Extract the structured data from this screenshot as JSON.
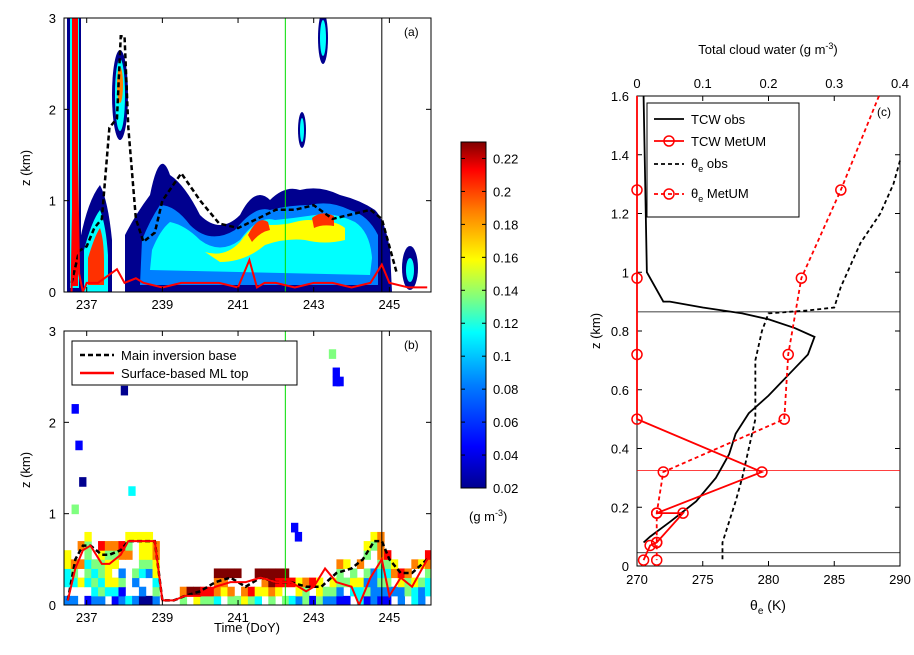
{
  "panel_a": {
    "label": "(a)",
    "ylabel": "z (km)",
    "yticks": [
      "0",
      "1",
      "2",
      "3"
    ],
    "xticks": [
      "237",
      "239",
      "241",
      "243",
      "245"
    ]
  },
  "panel_b": {
    "label": "(b)",
    "ylabel": "z (km)",
    "xlabel": "Time (DoY)",
    "yticks": [
      "0",
      "1",
      "2",
      "3"
    ],
    "xticks": [
      "237",
      "239",
      "241",
      "243",
      "245"
    ],
    "legend": [
      "Main inversion base",
      "Surface-based ML top"
    ]
  },
  "colorbar": {
    "ticks": [
      "0.02",
      "0.04",
      "0.06",
      "0.08",
      "0.1",
      "0.12",
      "0.14",
      "0.16",
      "0.18",
      "0.2",
      "0.22"
    ],
    "unit_base": "(g m",
    "unit_exp": "-3",
    "unit_close": ")"
  },
  "panel_c": {
    "label": "(c)",
    "top_label_base": "Total cloud water (g m",
    "top_label_exp": "-3",
    "top_label_close": ")",
    "top_ticks": [
      "0",
      "0.1",
      "0.2",
      "0.3",
      "0.4"
    ],
    "bottom_ticks": [
      "270",
      "275",
      "280",
      "285",
      "290"
    ],
    "yticks": [
      "0",
      "0.2",
      "0.4",
      "0.6",
      "0.8",
      "1",
      "1.2",
      "1.4",
      "1.6"
    ],
    "ylabel": "z (km)",
    "xlabel_base": "θ",
    "xlabel_sub": "e",
    "xlabel_rest": " (K)",
    "legend": [
      {
        "base": "TCW obs",
        "sub": "",
        "rest": ""
      },
      {
        "base": "TCW MetUM",
        "sub": "",
        "rest": ""
      },
      {
        "base": "θ",
        "sub": "e",
        "rest": " obs"
      },
      {
        "base": "θ",
        "sub": "e",
        "rest": " MetUM"
      }
    ]
  },
  "colors": {
    "obs": "#000000",
    "model": "#ff0000",
    "green_line": "#00dd00",
    "cloud_colormap": [
      "#00008f",
      "#0000ff",
      "#007fff",
      "#00ffff",
      "#7fff7f",
      "#ffff00",
      "#ff7f00",
      "#ff0000",
      "#7f0000"
    ]
  },
  "chart_data": [
    {
      "type": "heatmap",
      "panel": "a",
      "xlabel": "",
      "ylabel": "z (km)",
      "xlim": [
        236.4,
        246.1
      ],
      "ylim": [
        0,
        3
      ],
      "vertical_lines": [
        {
          "x": 242.25,
          "color": "green"
        },
        {
          "x": 244.8,
          "color": "black"
        }
      ],
      "series": [
        {
          "name": "Main inversion base",
          "x": [
            236.6,
            236.8,
            237.0,
            237.2,
            237.4,
            237.6,
            237.8,
            237.9,
            238.0,
            238.1,
            238.3,
            238.5,
            238.8,
            239.0,
            239.5,
            240.0,
            240.5,
            241.0,
            241.5,
            242.0,
            242.5,
            243.0,
            243.5,
            244.0,
            244.5,
            244.8,
            245.0,
            245.2
          ],
          "y": [
            0.1,
            0.45,
            0.5,
            0.7,
            0.8,
            1.8,
            1.9,
            2.8,
            2.8,
            1.8,
            0.8,
            0.55,
            0.65,
            1.0,
            1.3,
            1.0,
            0.75,
            0.7,
            0.8,
            0.9,
            0.9,
            0.95,
            0.8,
            0.85,
            0.9,
            0.8,
            0.5,
            0.2
          ]
        },
        {
          "name": "Surface-based ML top",
          "x": [
            236.6,
            236.7,
            236.8,
            236.9,
            237.0,
            237.3,
            237.8,
            238.0,
            238.3,
            238.5,
            239.0,
            239.5,
            240.0,
            240.5,
            241.0,
            241.3,
            241.5,
            241.7,
            242.0,
            242.5,
            243.0,
            243.5,
            244.0,
            244.5,
            244.8,
            245.0,
            245.5,
            246.0
          ],
          "y": [
            0.0,
            2.4,
            0.2,
            0.0,
            0.1,
            0.1,
            0.25,
            0.1,
            0.15,
            0.1,
            0.05,
            0.1,
            0.1,
            0.1,
            0.05,
            0.35,
            0.05,
            0.1,
            0.1,
            0.05,
            0.1,
            0.1,
            0.05,
            0.1,
            0.3,
            0.1,
            0.05,
            0.05
          ]
        }
      ],
      "color_scale": {
        "min": 0.02,
        "max": 0.23
      }
    },
    {
      "type": "heatmap",
      "panel": "b",
      "xlabel": "Time (DoY)",
      "ylabel": "z (km)",
      "xlim": [
        236.4,
        246.1
      ],
      "ylim": [
        0,
        3
      ],
      "vertical_lines": [
        {
          "x": 242.25,
          "color": "green"
        },
        {
          "x": 244.8,
          "color": "black"
        }
      ],
      "series": [
        {
          "name": "Main inversion base",
          "x": [
            236.5,
            236.7,
            236.9,
            237.1,
            237.4,
            237.6,
            237.9,
            238.1,
            238.5,
            238.8,
            239.0,
            239.3,
            239.6,
            240.0,
            240.4,
            240.8,
            241.2,
            241.6,
            242.0,
            242.4,
            242.8,
            243.2,
            243.6,
            244.0,
            244.3,
            244.6,
            244.8,
            245.0,
            245.3,
            245.6,
            246.0
          ],
          "y": [
            0.05,
            0.5,
            0.65,
            0.65,
            0.55,
            0.55,
            0.6,
            0.7,
            0.7,
            0.7,
            0.05,
            0.05,
            0.1,
            0.15,
            0.25,
            0.3,
            0.2,
            0.3,
            0.25,
            0.25,
            0.2,
            0.2,
            0.35,
            0.4,
            0.5,
            0.7,
            0.7,
            0.5,
            0.35,
            0.35,
            0.5
          ]
        },
        {
          "name": "Surface-based ML top",
          "x": [
            236.5,
            236.7,
            236.9,
            237.1,
            237.4,
            237.6,
            237.9,
            238.1,
            238.5,
            238.8,
            239.0,
            239.3,
            239.6,
            240.0,
            240.4,
            240.8,
            241.2,
            241.6,
            242.0,
            242.4,
            242.8,
            243.0,
            243.3,
            243.6,
            244.0,
            244.2,
            244.5,
            244.8,
            245.0,
            245.3,
            245.6,
            246.0
          ],
          "y": [
            0.05,
            0.4,
            0.6,
            0.65,
            0.45,
            0.45,
            0.55,
            0.7,
            0.7,
            0.7,
            0.05,
            0.05,
            0.1,
            0.1,
            0.2,
            0.25,
            0.25,
            0.3,
            0.25,
            0.25,
            0.15,
            0.2,
            0.4,
            0.25,
            0.2,
            0.0,
            0.3,
            0.5,
            0.1,
            0.3,
            0.2,
            0.5
          ]
        }
      ],
      "color_scale": {
        "min": 0.02,
        "max": 0.23
      }
    },
    {
      "type": "line",
      "panel": "c",
      "title": "",
      "ylabel": "z (km)",
      "ylim": [
        0,
        1.6
      ],
      "x_bottom": {
        "label": "θe (K)",
        "lim": [
          270,
          290
        ]
      },
      "x_top": {
        "label": "Total cloud water (g m-3)",
        "lim": [
          0,
          0.4
        ]
      },
      "horizontal_lines": [
        {
          "y": 0.865,
          "color": "black"
        },
        {
          "y": 0.325,
          "color": "red"
        },
        {
          "y": 0.045,
          "color": "black"
        }
      ],
      "series": [
        {
          "name": "TCW obs",
          "axis": "top",
          "x": [
            0.01,
            0.015,
            0.04,
            0.05,
            0.1,
            0.16,
            0.2,
            0.24,
            0.27,
            0.26,
            0.23,
            0.2,
            0.17,
            0.15,
            0.14,
            0.12,
            0.09,
            0.05,
            0.02,
            0.01
          ],
          "y": [
            1.6,
            1.0,
            0.9,
            0.9,
            0.88,
            0.86,
            0.84,
            0.81,
            0.78,
            0.72,
            0.65,
            0.58,
            0.52,
            0.45,
            0.38,
            0.3,
            0.22,
            0.15,
            0.1,
            0.08
          ]
        },
        {
          "name": "TCW MetUM",
          "axis": "top",
          "x": [
            0.0,
            0.0,
            0.0,
            0.0,
            0.0,
            0.19,
            0.03,
            0.07,
            0.03,
            0.02,
            0.01
          ],
          "y": [
            1.6,
            1.28,
            0.98,
            0.72,
            0.5,
            0.32,
            0.18,
            0.18,
            0.08,
            0.07,
            0.02
          ]
        },
        {
          "name": "θe obs",
          "axis": "bottom",
          "x": [
            290.0,
            289.5,
            288.5,
            287.0,
            286.5,
            286.0,
            285.5,
            285.0,
            283.0,
            280.0,
            279.5,
            279.0,
            279.0,
            279.0,
            278.5,
            278.0,
            277.5,
            277.0,
            276.5,
            276.5
          ],
          "y": [
            1.38,
            1.3,
            1.2,
            1.1,
            1.05,
            1.0,
            0.95,
            0.88,
            0.87,
            0.86,
            0.8,
            0.7,
            0.6,
            0.5,
            0.4,
            0.3,
            0.22,
            0.15,
            0.08,
            0.02
          ]
        },
        {
          "name": "θe MetUM",
          "axis": "bottom",
          "x": [
            288.4,
            285.5,
            282.5,
            281.5,
            281.2,
            272.0,
            271.5,
            271.5,
            271.5
          ],
          "y": [
            1.6,
            1.28,
            0.98,
            0.72,
            0.5,
            0.32,
            0.18,
            0.08,
            0.02
          ]
        }
      ]
    }
  ]
}
